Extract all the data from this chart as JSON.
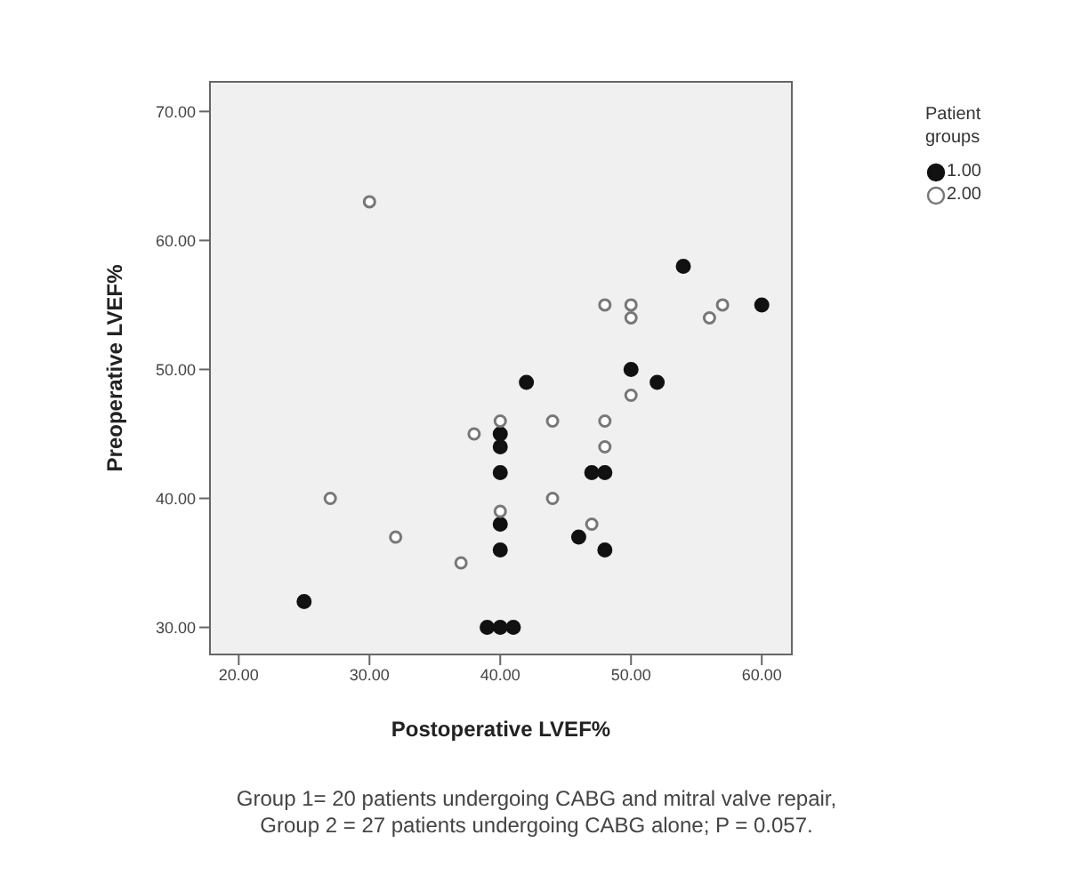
{
  "chart_data": {
    "type": "scatter",
    "xlabel": "Postoperative LVEF%",
    "ylabel": "Preoperative LVEF%",
    "legend_title": "Patient groups",
    "legend": "top right",
    "marker": "circle",
    "xlim": [
      17.8,
      62.3
    ],
    "ylim": [
      27.9,
      72.3
    ],
    "xticks": [
      {
        "value": 20,
        "label": "20.00"
      },
      {
        "value": 30,
        "label": "30.00"
      },
      {
        "value": 40,
        "label": "40.00"
      },
      {
        "value": 50,
        "label": "50.00"
      },
      {
        "value": 60,
        "label": "60.00"
      }
    ],
    "yticks": [
      {
        "value": 30,
        "label": "30.00"
      },
      {
        "value": 40,
        "label": "40.00"
      },
      {
        "value": 50,
        "label": "50.00"
      },
      {
        "value": 60,
        "label": "60.00"
      },
      {
        "value": 70,
        "label": "70.00"
      }
    ],
    "series": [
      {
        "name": "1.00",
        "color": "#111111",
        "x": [
          25,
          39,
          40,
          41,
          40,
          40,
          40,
          40,
          40,
          42,
          46,
          47,
          48,
          48,
          50,
          52,
          54,
          60
        ],
        "values": [
          32,
          30,
          30,
          30,
          36,
          38,
          42,
          44,
          45,
          49,
          37,
          42,
          42,
          36,
          50,
          49,
          58,
          55
        ]
      },
      {
        "name": "2.00",
        "color": "#777777",
        "x": [
          30,
          27,
          32,
          37,
          38,
          40,
          40,
          44,
          44,
          47,
          48,
          48,
          48,
          50,
          50,
          50,
          56,
          57
        ],
        "values": [
          63,
          40,
          37,
          35,
          45,
          46,
          39,
          46,
          40,
          38,
          46,
          44,
          55,
          55,
          54,
          48,
          54,
          55
        ]
      }
    ],
    "annotations": [
      "Group 1= 20 patients undergoing CABG and mitral valve repair,",
      "Group 2 = 27 patients undergoing CABG alone; P = 0.057."
    ]
  }
}
